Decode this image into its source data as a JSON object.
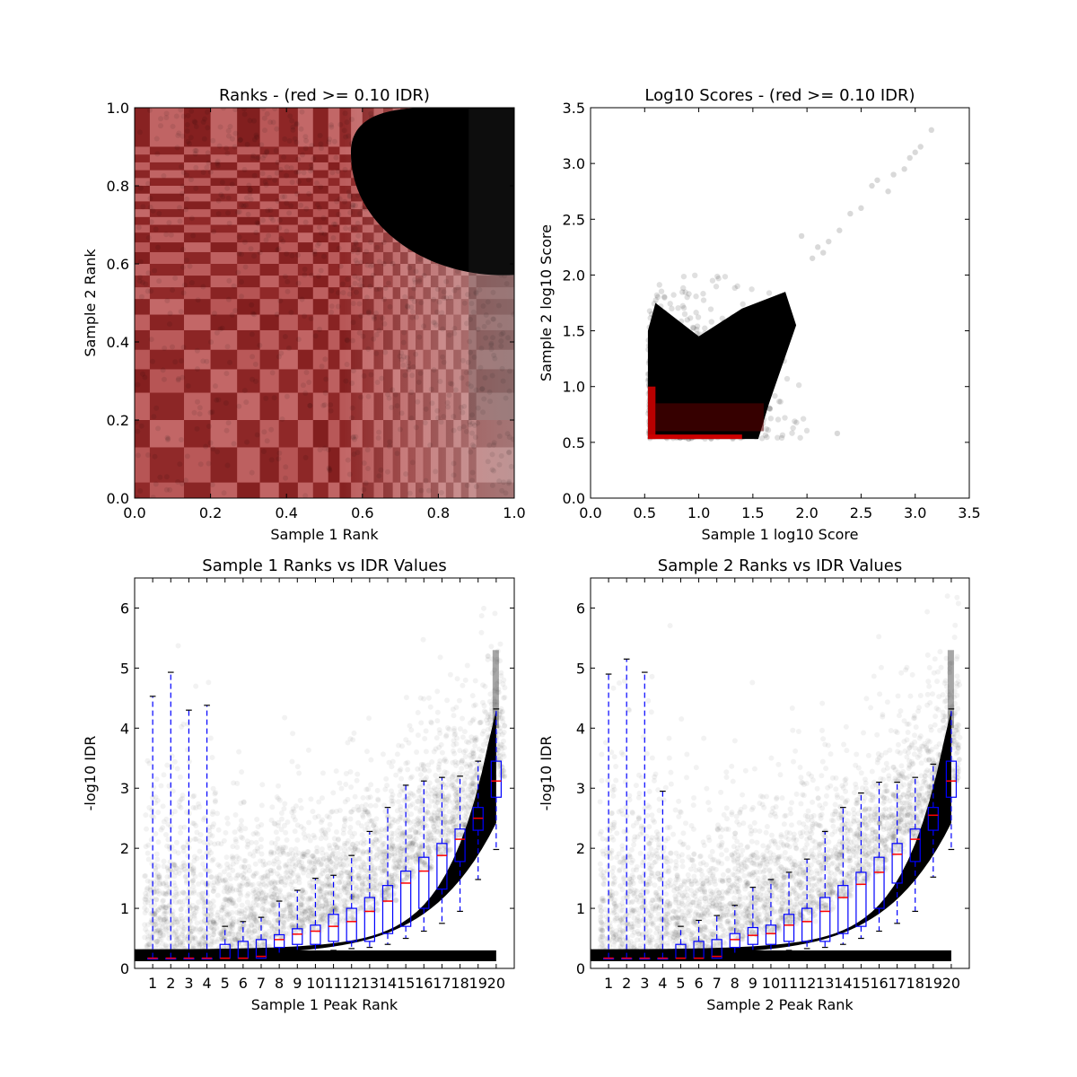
{
  "chart_data": [
    {
      "type": "scatter",
      "title": "Ranks - (red >= 0.10 IDR)",
      "xlabel": "Sample 1 Rank",
      "ylabel": "Sample 2 Rank",
      "xlim": [
        0.0,
        1.0
      ],
      "ylim": [
        0.0,
        1.0
      ],
      "xticks": [
        "0.0",
        "0.2",
        "0.4",
        "0.6",
        "0.8",
        "1.0"
      ],
      "yticks": [
        "0.0",
        "0.2",
        "0.4",
        "0.6",
        "0.8",
        "1.0"
      ],
      "grid": false,
      "colors": {
        "passing": "#000000",
        "failing": "#8b0000"
      },
      "description": "Dense point cloud: dark red points (IDR >= 0.10) across the grid, with a black cluster of reproducible peaks in the upper-right corner (x > ~0.57, y > ~0.58).",
      "regions": [
        {
          "series": "failing",
          "x": [
            0.0,
            1.0
          ],
          "y": [
            0.0,
            1.0
          ]
        },
        {
          "series": "passing",
          "x": [
            0.57,
            1.0
          ],
          "y": [
            0.58,
            1.0
          ]
        }
      ]
    },
    {
      "type": "scatter",
      "title": "Log10 Scores - (red >= 0.10 IDR)",
      "xlabel": "Sample 1 log10 Score",
      "ylabel": "Sample 2 log10 Score",
      "xlim": [
        0.0,
        3.5
      ],
      "ylim": [
        0.0,
        3.5
      ],
      "xticks": [
        "0.0",
        "0.5",
        "1.0",
        "1.5",
        "2.0",
        "2.5",
        "3.0",
        "3.5"
      ],
      "yticks": [
        "0.0",
        "0.5",
        "1.0",
        "1.5",
        "2.0",
        "2.5",
        "3.0",
        "3.5"
      ],
      "grid": false,
      "colors": {
        "passing": "#000000",
        "failing": "#cc0000"
      },
      "description": "Black cloud from about (0.53, 0.53) spreading up to (1.9, 1.9), with red points along the lower-left edge and sparse outliers up to (3.15, 3.3).",
      "outliers": [
        [
          2.6,
          2.8
        ],
        [
          2.65,
          2.85
        ],
        [
          2.75,
          2.75
        ],
        [
          2.8,
          2.9
        ],
        [
          2.9,
          2.95
        ],
        [
          2.95,
          3.05
        ],
        [
          3.0,
          3.1
        ],
        [
          3.05,
          3.15
        ],
        [
          3.15,
          3.3
        ],
        [
          2.4,
          2.55
        ],
        [
          2.5,
          2.6
        ],
        [
          2.3,
          2.4
        ],
        [
          2.2,
          2.3
        ],
        [
          2.15,
          2.2
        ],
        [
          2.1,
          2.25
        ],
        [
          2.05,
          2.15
        ],
        [
          1.95,
          2.35
        ],
        [
          2.28,
          0.58
        ]
      ]
    },
    {
      "type": "box",
      "title": "Sample 1 Ranks vs IDR Values",
      "xlabel": "Sample 1 Peak Rank",
      "ylabel": "-log10 IDR",
      "ylim": [
        0,
        6.5
      ],
      "yticks": [
        "0",
        "1",
        "2",
        "3",
        "4",
        "5",
        "6"
      ],
      "categories": [
        "1",
        "2",
        "3",
        "4",
        "5",
        "6",
        "7",
        "8",
        "9",
        "10",
        "11",
        "12",
        "13",
        "14",
        "15",
        "16",
        "17",
        "18",
        "19",
        "20"
      ],
      "colors": {
        "box": "#0000ff",
        "median": "#ff0000",
        "points": "#000000"
      },
      "boxes": [
        {
          "whislo": 0.17,
          "q1": 0.17,
          "med": 0.17,
          "q3": 0.17,
          "whishi": 4.53
        },
        {
          "whislo": 0.17,
          "q1": 0.17,
          "med": 0.17,
          "q3": 0.17,
          "whishi": 4.93
        },
        {
          "whislo": 0.17,
          "q1": 0.17,
          "med": 0.17,
          "q3": 0.17,
          "whishi": 4.3
        },
        {
          "whislo": 0.17,
          "q1": 0.17,
          "med": 0.17,
          "q3": 0.17,
          "whishi": 4.38
        },
        {
          "whislo": 0.17,
          "q1": 0.17,
          "med": 0.17,
          "q3": 0.4,
          "whishi": 0.7
        },
        {
          "whislo": 0.17,
          "q1": 0.17,
          "med": 0.17,
          "q3": 0.45,
          "whishi": 0.78
        },
        {
          "whislo": 0.17,
          "q1": 0.17,
          "med": 0.2,
          "q3": 0.48,
          "whishi": 0.85
        },
        {
          "whislo": 0.25,
          "q1": 0.35,
          "med": 0.48,
          "q3": 0.56,
          "whishi": 1.12
        },
        {
          "whislo": 0.25,
          "q1": 0.4,
          "med": 0.57,
          "q3": 0.66,
          "whishi": 1.3
        },
        {
          "whislo": 0.28,
          "q1": 0.4,
          "med": 0.62,
          "q3": 0.72,
          "whishi": 1.5
        },
        {
          "whislo": 0.3,
          "q1": 0.45,
          "med": 0.7,
          "q3": 0.9,
          "whishi": 1.55
        },
        {
          "whislo": 0.33,
          "q1": 0.45,
          "med": 0.78,
          "q3": 1.0,
          "whishi": 1.88
        },
        {
          "whislo": 0.35,
          "q1": 0.45,
          "med": 0.95,
          "q3": 1.18,
          "whishi": 2.28
        },
        {
          "whislo": 0.4,
          "q1": 0.58,
          "med": 1.12,
          "q3": 1.38,
          "whishi": 2.68
        },
        {
          "whislo": 0.5,
          "q1": 0.7,
          "med": 1.42,
          "q3": 1.62,
          "whishi": 3.05
        },
        {
          "whislo": 0.62,
          "q1": 1.0,
          "med": 1.62,
          "q3": 1.85,
          "whishi": 3.12
        },
        {
          "whislo": 0.75,
          "q1": 1.32,
          "med": 1.88,
          "q3": 2.08,
          "whishi": 3.18
        },
        {
          "whislo": 0.95,
          "q1": 1.78,
          "med": 2.15,
          "q3": 2.32,
          "whishi": 3.2
        },
        {
          "whislo": 1.48,
          "q1": 2.3,
          "med": 2.5,
          "q3": 2.68,
          "whishi": 3.45
        },
        {
          "whislo": 1.98,
          "q1": 2.85,
          "med": 3.12,
          "q3": 3.45,
          "whishi": 4.32
        }
      ]
    },
    {
      "type": "box",
      "title": "Sample 2 Ranks vs IDR Values",
      "xlabel": "Sample 2 Peak Rank",
      "ylabel": "-log10 IDR",
      "ylim": [
        0,
        6.5
      ],
      "yticks": [
        "0",
        "1",
        "2",
        "3",
        "4",
        "5",
        "6"
      ],
      "categories": [
        "1",
        "2",
        "3",
        "4",
        "5",
        "6",
        "7",
        "8",
        "9",
        "10",
        "11",
        "12",
        "13",
        "14",
        "15",
        "16",
        "17",
        "18",
        "19",
        "20"
      ],
      "colors": {
        "box": "#0000ff",
        "median": "#ff0000",
        "points": "#000000"
      },
      "boxes": [
        {
          "whislo": 0.17,
          "q1": 0.17,
          "med": 0.17,
          "q3": 0.17,
          "whishi": 4.9
        },
        {
          "whislo": 0.17,
          "q1": 0.17,
          "med": 0.17,
          "q3": 0.17,
          "whishi": 5.15
        },
        {
          "whislo": 0.17,
          "q1": 0.17,
          "med": 0.17,
          "q3": 0.17,
          "whishi": 4.93
        },
        {
          "whislo": 0.17,
          "q1": 0.17,
          "med": 0.17,
          "q3": 0.17,
          "whishi": 2.95
        },
        {
          "whislo": 0.17,
          "q1": 0.17,
          "med": 0.17,
          "q3": 0.4,
          "whishi": 0.7
        },
        {
          "whislo": 0.17,
          "q1": 0.17,
          "med": 0.17,
          "q3": 0.45,
          "whishi": 0.8
        },
        {
          "whislo": 0.17,
          "q1": 0.17,
          "med": 0.2,
          "q3": 0.48,
          "whishi": 0.88
        },
        {
          "whislo": 0.25,
          "q1": 0.35,
          "med": 0.48,
          "q3": 0.58,
          "whishi": 1.05
        },
        {
          "whislo": 0.25,
          "q1": 0.4,
          "med": 0.55,
          "q3": 0.68,
          "whishi": 1.35
        },
        {
          "whislo": 0.28,
          "q1": 0.4,
          "med": 0.58,
          "q3": 0.72,
          "whishi": 1.48
        },
        {
          "whislo": 0.3,
          "q1": 0.45,
          "med": 0.72,
          "q3": 0.9,
          "whishi": 1.6
        },
        {
          "whislo": 0.33,
          "q1": 0.45,
          "med": 0.78,
          "q3": 1.0,
          "whishi": 1.82
        },
        {
          "whislo": 0.35,
          "q1": 0.45,
          "med": 0.95,
          "q3": 1.18,
          "whishi": 2.28
        },
        {
          "whislo": 0.4,
          "q1": 0.58,
          "med": 1.18,
          "q3": 1.38,
          "whishi": 2.68
        },
        {
          "whislo": 0.5,
          "q1": 0.7,
          "med": 1.4,
          "q3": 1.6,
          "whishi": 2.92
        },
        {
          "whislo": 0.62,
          "q1": 1.0,
          "med": 1.6,
          "q3": 1.85,
          "whishi": 3.1
        },
        {
          "whislo": 0.75,
          "q1": 1.42,
          "med": 1.9,
          "q3": 2.08,
          "whishi": 3.1
        },
        {
          "whislo": 0.95,
          "q1": 1.78,
          "med": 2.15,
          "q3": 2.32,
          "whishi": 3.18
        },
        {
          "whislo": 1.52,
          "q1": 2.3,
          "med": 2.55,
          "q3": 2.68,
          "whishi": 3.4
        },
        {
          "whislo": 1.98,
          "q1": 2.85,
          "med": 3.12,
          "q3": 3.45,
          "whishi": 4.32
        }
      ]
    }
  ]
}
